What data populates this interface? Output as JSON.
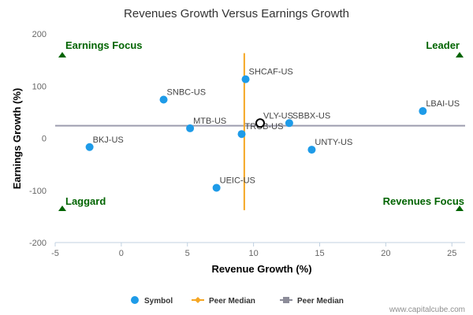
{
  "chart_data": {
    "type": "scatter",
    "title": "Revenues Growth Versus Earnings Growth",
    "xlabel": "Revenue Growth (%)",
    "ylabel": "Earnings Growth (%)",
    "xlim": [
      -5,
      26
    ],
    "ylim": [
      -200,
      200
    ],
    "xticks": [
      -5,
      0,
      5,
      10,
      15,
      20,
      25
    ],
    "yticks": [
      -200,
      -100,
      0,
      100,
      200
    ],
    "grid": false,
    "points": [
      {
        "label": "BKJ-US",
        "x": -2.4,
        "y": -17
      },
      {
        "label": "SNBC-US",
        "x": 3.2,
        "y": 74
      },
      {
        "label": "MTB-US",
        "x": 5.2,
        "y": 19
      },
      {
        "label": "UEIC-US",
        "x": 7.2,
        "y": -95
      },
      {
        "label": "TRCB-US",
        "x": 9.1,
        "y": 8
      },
      {
        "label": "SHCAF-US",
        "x": 9.4,
        "y": 113
      },
      {
        "label": "VLY-US",
        "x": 10.5,
        "y": 29,
        "highlight": true
      },
      {
        "label": "SBBX-US",
        "x": 12.7,
        "y": 29
      },
      {
        "label": "UNTY-US",
        "x": 14.4,
        "y": -22
      },
      {
        "label": "LBAI-US",
        "x": 22.8,
        "y": 52
      }
    ],
    "peer_median_revenue_x": 9.3,
    "peer_median_revenue_y_range": [
      -138,
      163
    ],
    "peer_median_earnings_y": 24,
    "quadrants": {
      "top_left": "Earnings Focus",
      "top_right": "Leader",
      "bottom_left": "Laggard",
      "bottom_right": "Revenues Focus"
    },
    "legend": [
      {
        "name": "Symbol",
        "color": "#1e9be8",
        "marker": "circle"
      },
      {
        "name": "Peer Median",
        "color": "#f5a623",
        "marker": "diamond"
      },
      {
        "name": "Peer Median",
        "color": "#8c8c99",
        "marker": "square"
      }
    ],
    "legend_position": "bottom",
    "colors": {
      "point": "#1e9be8",
      "revenue_median": "#f5a623",
      "earnings_median": "#9c9cae",
      "quadrant_text": "#006400"
    }
  },
  "credit": "www.capitalcube.com"
}
